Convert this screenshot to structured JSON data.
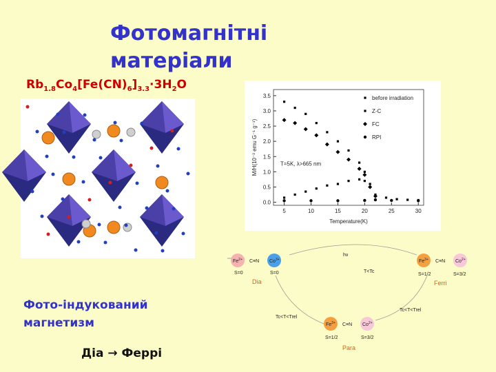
{
  "title": [
    "Фотомагнітні",
    "матеріали"
  ],
  "formula": [
    "Rb",
    "1.8",
    "Co",
    "4",
    "[Fe(CN)",
    "6",
    "]",
    "3.3",
    "·3H",
    "2",
    "O"
  ],
  "chart_data": {
    "type": "scatter",
    "x_label": "Temperature(K)",
    "y_label": "M/H(10⁻³ emu G⁻¹ g⁻¹)",
    "annotation": "T=5K, λ>665 nm",
    "xlim": [
      3,
      31
    ],
    "ylim": [
      -0.1,
      3.7
    ],
    "xticks": [
      5,
      10,
      15,
      20,
      25,
      30
    ],
    "yticks": [
      {
        "value": 0,
        "label": "0.0"
      },
      0.5,
      {
        "value": 1,
        "label": "1.0"
      },
      1.5,
      {
        "value": 2,
        "label": "2.0"
      },
      2.5,
      {
        "value": 3,
        "label": "3.0"
      },
      3.5
    ],
    "series": [
      {
        "name": "before irradiation",
        "color": "#000000",
        "marker": "square",
        "x": [
          5,
          7,
          9,
          11,
          13,
          15,
          17,
          19,
          20,
          21,
          22,
          24,
          26,
          28,
          30
        ],
        "values": [
          3.3,
          3.1,
          2.9,
          2.6,
          2.3,
          2.0,
          1.7,
          1.3,
          1.0,
          0.6,
          0.25,
          0.15,
          0.1,
          0.08,
          0.07
        ]
      },
      {
        "name": "Z-C",
        "color": "#000000",
        "marker": "square",
        "x": [
          5,
          7,
          9,
          11,
          13,
          15,
          17,
          19,
          20,
          21,
          22
        ],
        "values": [
          0.15,
          0.25,
          0.35,
          0.45,
          0.55,
          0.6,
          0.7,
          0.75,
          0.7,
          0.5,
          0.2
        ]
      },
      {
        "name": "FC",
        "color": "#000000",
        "marker": "diamond",
        "x": [
          5,
          7,
          9,
          11,
          13,
          15,
          17,
          19,
          20,
          21,
          22
        ],
        "values": [
          2.7,
          2.6,
          2.4,
          2.2,
          1.9,
          1.65,
          1.4,
          1.1,
          0.9,
          0.5,
          0.2
        ]
      },
      {
        "name": "RPI",
        "color": "#000000",
        "marker": "circle",
        "x": [
          5,
          10,
          15,
          20,
          22,
          25,
          30
        ],
        "values": [
          0.05,
          0.05,
          0.05,
          0.06,
          0.08,
          0.06,
          0.05
        ]
      }
    ]
  },
  "scheme": {
    "dia": {
      "fe": "Fe",
      "fe_charge": "2+",
      "bridge": "C≡N",
      "co": "Co",
      "co_charge": "3+",
      "fe_spin": "S=0",
      "co_spin": "S=0",
      "label": "Dia"
    },
    "ferri": {
      "fe": "Fe",
      "fe_charge": "3+",
      "bridge": "C≡N",
      "co": "Co",
      "co_charge": "2+",
      "fe_spin": "S=1/2",
      "co_spin": "S=3/2",
      "label": "Ferri"
    },
    "para": {
      "fe": "Fe",
      "fe_charge": "3+",
      "bridge": "C≡N",
      "co": "Co",
      "co_charge": "2+",
      "fe_spin": "S=1/2",
      "co_spin": "S=3/2",
      "label": "Para"
    },
    "top_arrow": "T<Tc",
    "right_arrow": "Tc<T<Trel",
    "left_arrow": "Tc<T<Trel",
    "light": "hν"
  },
  "caption": [
    "Фото-індукований",
    "магнетизм"
  ],
  "transition": "Діа → Феррі"
}
